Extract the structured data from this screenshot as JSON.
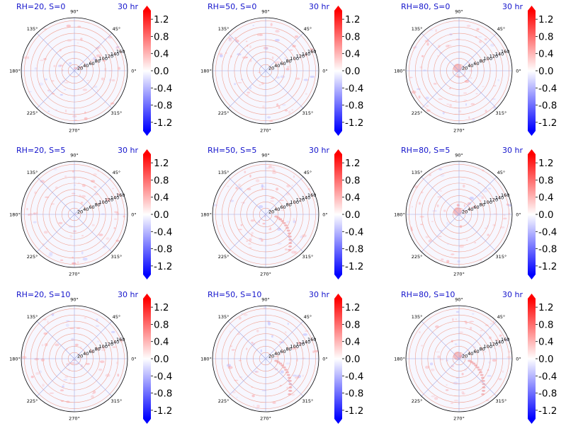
{
  "figure": {
    "time_label": "30 hr",
    "colormap": "bwr",
    "colors": {
      "title": "#1414cc",
      "neg": "#0000ff",
      "mid": "#ffffff",
      "pos": "#ff0000",
      "grid_radial": "#f0a090",
      "grid_spoke": "#a0a8e0"
    }
  },
  "chart_data": [
    {
      "type": "heatmap",
      "projection": "polar",
      "title": "RH=20, S=0",
      "time": "30 hr",
      "rh": 20,
      "s": 0,
      "field_sign": "slightly positive, scattered",
      "r_ticks": [
        "20",
        "40",
        "60",
        "80",
        "100",
        "120",
        "140",
        "160"
      ],
      "theta_ticks": [
        "0°",
        "45°",
        "90°",
        "135°",
        "180°",
        "225°",
        "270°",
        "315°"
      ],
      "colorbar": {
        "ticks": [
          "1.2",
          "0.8",
          "0.4",
          "0.0",
          "-0.4",
          "-0.8",
          "-1.2"
        ],
        "range": [
          -1.4,
          1.4
        ],
        "extend": "both"
      }
    },
    {
      "type": "heatmap",
      "projection": "polar",
      "title": "RH=50, S=0",
      "time": "30 hr",
      "rh": 50,
      "s": 0,
      "field_sign": "slightly positive, scattered",
      "r_ticks": [
        "20",
        "40",
        "60",
        "80",
        "100",
        "120",
        "140",
        "160"
      ],
      "theta_ticks": [
        "0°",
        "45°",
        "90°",
        "135°",
        "180°",
        "225°",
        "270°",
        "315°"
      ],
      "colorbar": {
        "ticks": [
          "1.2",
          "0.8",
          "0.4",
          "0.0",
          "-0.4",
          "-0.8",
          "-1.2"
        ],
        "range": [
          -1.4,
          1.4
        ],
        "extend": "both"
      }
    },
    {
      "type": "heatmap",
      "projection": "polar",
      "title": "RH=80, S=0",
      "time": "30 hr",
      "rh": 80,
      "s": 0,
      "field_sign": "positive near center",
      "r_ticks": [
        "20",
        "40",
        "60",
        "80",
        "100",
        "120",
        "140",
        "160"
      ],
      "theta_ticks": [
        "0°",
        "45°",
        "90°",
        "135°",
        "180°",
        "225°",
        "270°",
        "315°"
      ],
      "colorbar": {
        "ticks": [
          "1.2",
          "0.8",
          "0.4",
          "0.0",
          "-0.4",
          "-0.8",
          "-1.2"
        ],
        "range": [
          -1.4,
          1.4
        ],
        "extend": "both"
      }
    },
    {
      "type": "heatmap",
      "projection": "polar",
      "title": "RH=20, S=5",
      "time": "30 hr",
      "rh": 20,
      "s": 5,
      "field_sign": "slightly positive, scattered",
      "r_ticks": [
        "20",
        "40",
        "60",
        "80",
        "100",
        "120",
        "140",
        "160"
      ],
      "theta_ticks": [
        "0°",
        "45°",
        "90°",
        "135°",
        "180°",
        "225°",
        "270°",
        "315°"
      ],
      "colorbar": {
        "ticks": [
          "1.2",
          "0.8",
          "0.4",
          "0.0",
          "-0.4",
          "-0.8",
          "-1.2"
        ],
        "range": [
          -1.4,
          1.4
        ],
        "extend": "both"
      }
    },
    {
      "type": "heatmap",
      "projection": "polar",
      "title": "RH=50, S=5",
      "time": "30 hr",
      "rh": 50,
      "s": 5,
      "field_sign": "positive band in lower-right quadrant",
      "r_ticks": [
        "20",
        "40",
        "60",
        "80",
        "100",
        "120",
        "140",
        "160"
      ],
      "theta_ticks": [
        "0°",
        "45°",
        "90°",
        "135°",
        "180°",
        "225°",
        "270°",
        "315°"
      ],
      "colorbar": {
        "ticks": [
          "1.2",
          "0.8",
          "0.4",
          "0.0",
          "-0.4",
          "-0.8",
          "-1.2"
        ],
        "range": [
          -1.4,
          1.4
        ],
        "extend": "both"
      }
    },
    {
      "type": "heatmap",
      "projection": "polar",
      "title": "RH=80, S=5",
      "time": "30 hr",
      "rh": 80,
      "s": 5,
      "field_sign": "positive near center",
      "r_ticks": [
        "20",
        "40",
        "60",
        "80",
        "100",
        "120",
        "140",
        "160"
      ],
      "theta_ticks": [
        "0°",
        "45°",
        "90°",
        "135°",
        "180°",
        "225°",
        "270°",
        "315°"
      ],
      "colorbar": {
        "ticks": [
          "1.2",
          "0.8",
          "0.4",
          "0.0",
          "-0.4",
          "-0.8",
          "-1.2"
        ],
        "range": [
          -1.4,
          1.4
        ],
        "extend": "both"
      }
    },
    {
      "type": "heatmap",
      "projection": "polar",
      "title": "RH=20, S=10",
      "time": "30 hr",
      "rh": 20,
      "s": 10,
      "field_sign": "slightly positive, scattered",
      "r_ticks": [
        "20",
        "40",
        "60",
        "80",
        "100",
        "120",
        "140",
        "160"
      ],
      "theta_ticks": [
        "0°",
        "45°",
        "90°",
        "135°",
        "180°",
        "225°",
        "270°",
        "315°"
      ],
      "colorbar": {
        "ticks": [
          "1.2",
          "0.8",
          "0.4",
          "0.0",
          "-0.4",
          "-0.8",
          "-1.2"
        ],
        "range": [
          -1.4,
          1.4
        ],
        "extend": "both"
      }
    },
    {
      "type": "heatmap",
      "projection": "polar",
      "title": "RH=50, S=10",
      "time": "30 hr",
      "rh": 50,
      "s": 10,
      "field_sign": "positive arcs in lower-right quadrant",
      "r_ticks": [
        "20",
        "40",
        "60",
        "80",
        "100",
        "120",
        "140",
        "160"
      ],
      "theta_ticks": [
        "0°",
        "45°",
        "90°",
        "135°",
        "180°",
        "225°",
        "270°",
        "315°"
      ],
      "colorbar": {
        "ticks": [
          "1.2",
          "0.8",
          "0.4",
          "0.0",
          "-0.4",
          "-0.8",
          "-1.2"
        ],
        "range": [
          -1.4,
          1.4
        ],
        "extend": "both"
      }
    },
    {
      "type": "heatmap",
      "projection": "polar",
      "title": "RH=80, S=10",
      "time": "30 hr",
      "rh": 80,
      "s": 10,
      "field_sign": "positive arc in lower-right quadrant",
      "r_ticks": [
        "20",
        "40",
        "60",
        "80",
        "100",
        "120",
        "140",
        "160"
      ],
      "theta_ticks": [
        "0°",
        "45°",
        "90°",
        "135°",
        "180°",
        "225°",
        "270°",
        "315°"
      ],
      "colorbar": {
        "ticks": [
          "1.2",
          "0.8",
          "0.4",
          "0.0",
          "-0.4",
          "-0.8",
          "-1.2"
        ],
        "range": [
          -1.4,
          1.4
        ],
        "extend": "both"
      }
    }
  ]
}
